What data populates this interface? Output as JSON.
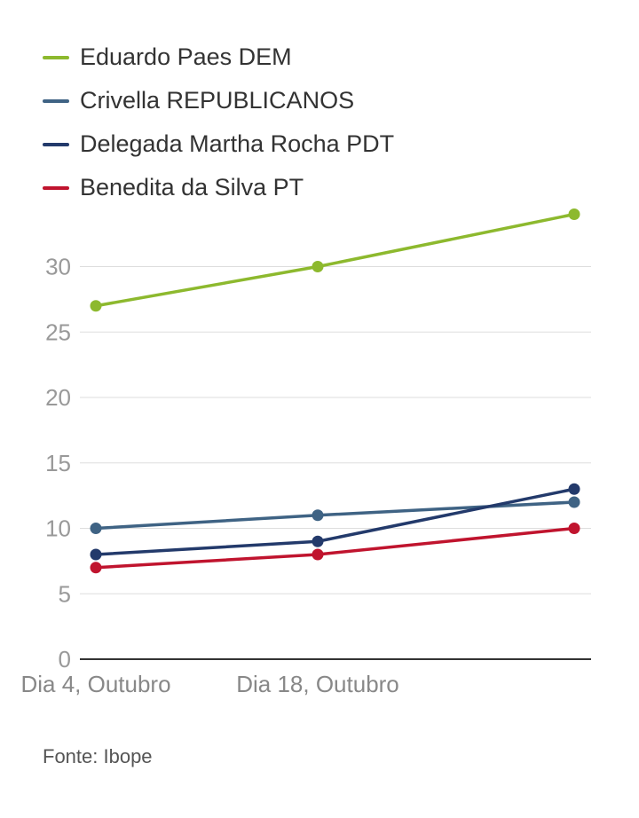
{
  "chart_data": {
    "type": "line",
    "categories": [
      "Dia 4, Outubro",
      "Dia 18, Outubro",
      ""
    ],
    "series": [
      {
        "name": "Eduardo Paes DEM",
        "color": "#8db92e",
        "values": [
          27,
          30,
          34
        ]
      },
      {
        "name": "Crivella REPUBLICANOS",
        "color": "#3f6384",
        "values": [
          10,
          11,
          12
        ]
      },
      {
        "name": "Delegada Martha Rocha PDT",
        "color": "#233a6b",
        "values": [
          8,
          9,
          13
        ]
      },
      {
        "name": "Benedita da Silva PT",
        "color": "#c0142e",
        "values": [
          7,
          8,
          10
        ]
      }
    ],
    "yticks": [
      0,
      5,
      10,
      15,
      20,
      25,
      30
    ],
    "ylim": [
      0,
      34
    ],
    "grid": true,
    "legend_position": "top-left"
  },
  "source": "Fonte: Ibope"
}
